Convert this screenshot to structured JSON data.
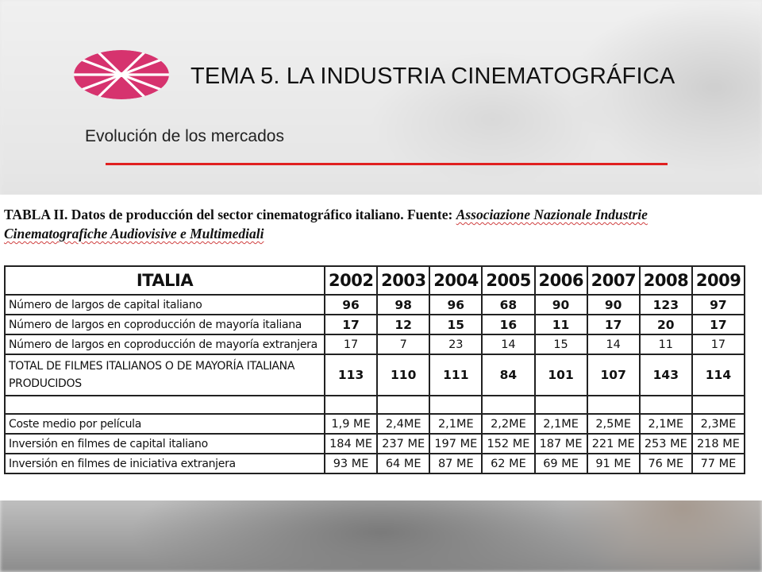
{
  "slide": {
    "title": "TEMA 5. LA INDUSTRIA CINEMATOGRÁFICA",
    "subtitle": "Evolución de los mercados",
    "colors": {
      "logo": "#d6336e",
      "rule": "#e02020"
    }
  },
  "caption": {
    "prefix": "TABLA II. Datos de producción del sector cinematográfico italiano. Fuente: ",
    "source": "Associazione Nazionale Industrie Cinematografiche Audiovisive e Multimediali"
  },
  "table": {
    "corner": "ITALIA",
    "years": [
      "2002",
      "2003",
      "2004",
      "2005",
      "2006",
      "2007",
      "2008",
      "2009"
    ],
    "rows": [
      {
        "label": "Número de largos de capital italiano",
        "values": [
          "96",
          "98",
          "96",
          "68",
          "90",
          "90",
          "123",
          "97"
        ]
      },
      {
        "label": "Número de largos en coproducción de mayoría italiana",
        "values": [
          "17",
          "12",
          "15",
          "16",
          "11",
          "17",
          "20",
          "17"
        ]
      },
      {
        "label": "Número de largos en coproducción de mayoría extranjera",
        "values": [
          "17",
          "7",
          "23",
          "14",
          "15",
          "14",
          "11",
          "17"
        ]
      },
      {
        "label": "TOTAL DE FILMES ITALIANOS O DE MAYORÍA ITALIANA PRODUCIDOS",
        "values": [
          "113",
          "110",
          "111",
          "84",
          "101",
          "107",
          "143",
          "114"
        ]
      },
      {
        "label": "",
        "values": [
          "",
          "",
          "",
          "",
          "",
          "",
          "",
          ""
        ]
      },
      {
        "label": "Coste medio por película",
        "values": [
          "1,9 ME",
          "2,4ME",
          "2,1ME",
          "2,2ME",
          "2,1ME",
          "2,5ME",
          "2,1ME",
          "2,3ME"
        ]
      },
      {
        "label": "Inversión en filmes de capital italiano",
        "values": [
          "184 ME",
          "237 ME",
          "197 ME",
          "152 ME",
          "187 ME",
          "221 ME",
          "253 ME",
          "218 ME"
        ]
      },
      {
        "label": "Inversión en filmes de iniciativa extranjera",
        "values": [
          "93 ME",
          "64 ME",
          "87 ME",
          "62 ME",
          "69 ME",
          "91 ME",
          "76 ME",
          "77 ME"
        ]
      }
    ]
  }
}
